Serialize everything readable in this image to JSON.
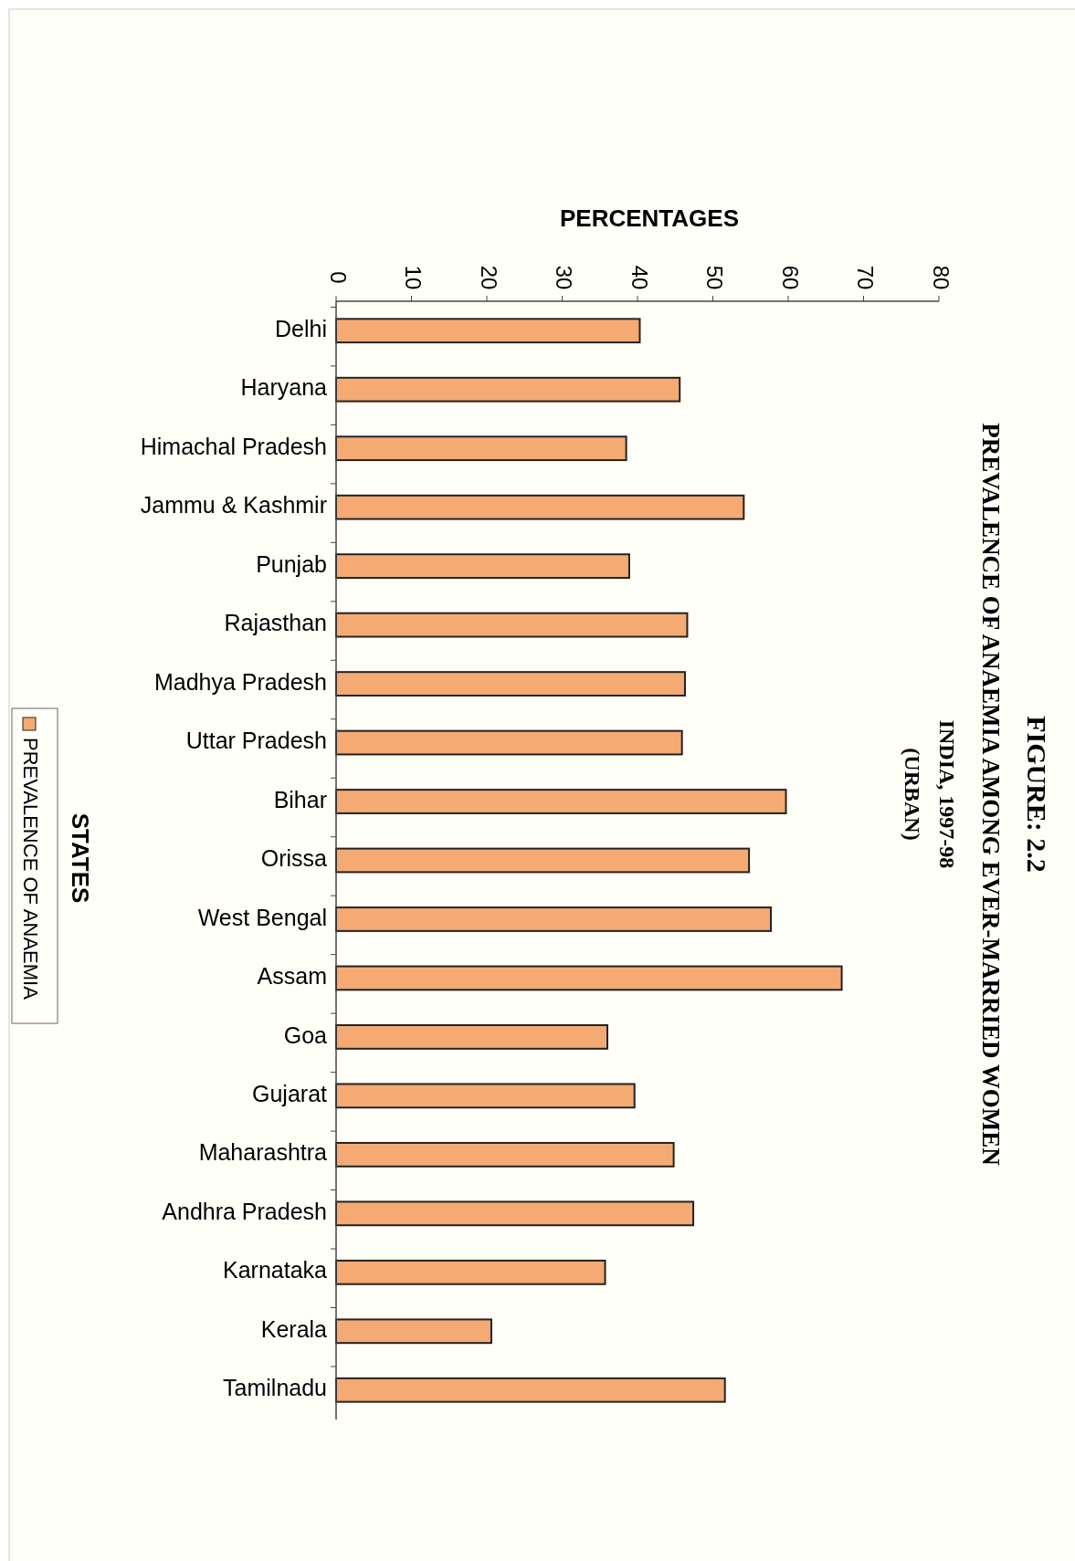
{
  "chart_data": {
    "type": "bar",
    "orientation": "horizontal",
    "title": "FIGURE: 2.2\nPREVALENCE OF ANAEMIA AMONG EVER-MARRIED WOMEN",
    "subtitle": "INDIA, 1997-98\n(URBAN)",
    "xlabel": "PERCENTAGES",
    "ylabel": "STATES",
    "categories": [
      "Delhi",
      "Haryana",
      "Himachal Pradesh",
      "Jammu & Kashmir",
      "Punjab",
      "Rajasthan",
      "Madhya Pradesh",
      "Uttar Pradesh",
      "Bihar",
      "Orissa",
      "West Bengal",
      "Assam",
      "Goa",
      "Gujarat",
      "Maharashtra",
      "Andhra Pradesh",
      "Karnataka",
      "Kerala",
      "Tamilnadu"
    ],
    "series": [
      {
        "name": "PREVALENCE OF ANAEMIA",
        "color": "#f4aa72",
        "values": [
          40.3,
          45.6,
          38.5,
          54.1,
          38.9,
          46.6,
          46.3,
          45.9,
          59.7,
          54.8,
          57.7,
          67.1,
          36.0,
          39.6,
          44.8,
          47.4,
          35.7,
          20.6,
          51.6
        ]
      }
    ],
    "xlim": [
      0,
      80
    ],
    "xticks": [
      0,
      10,
      20,
      30,
      40,
      50,
      60,
      70,
      80
    ],
    "legend": "left"
  }
}
